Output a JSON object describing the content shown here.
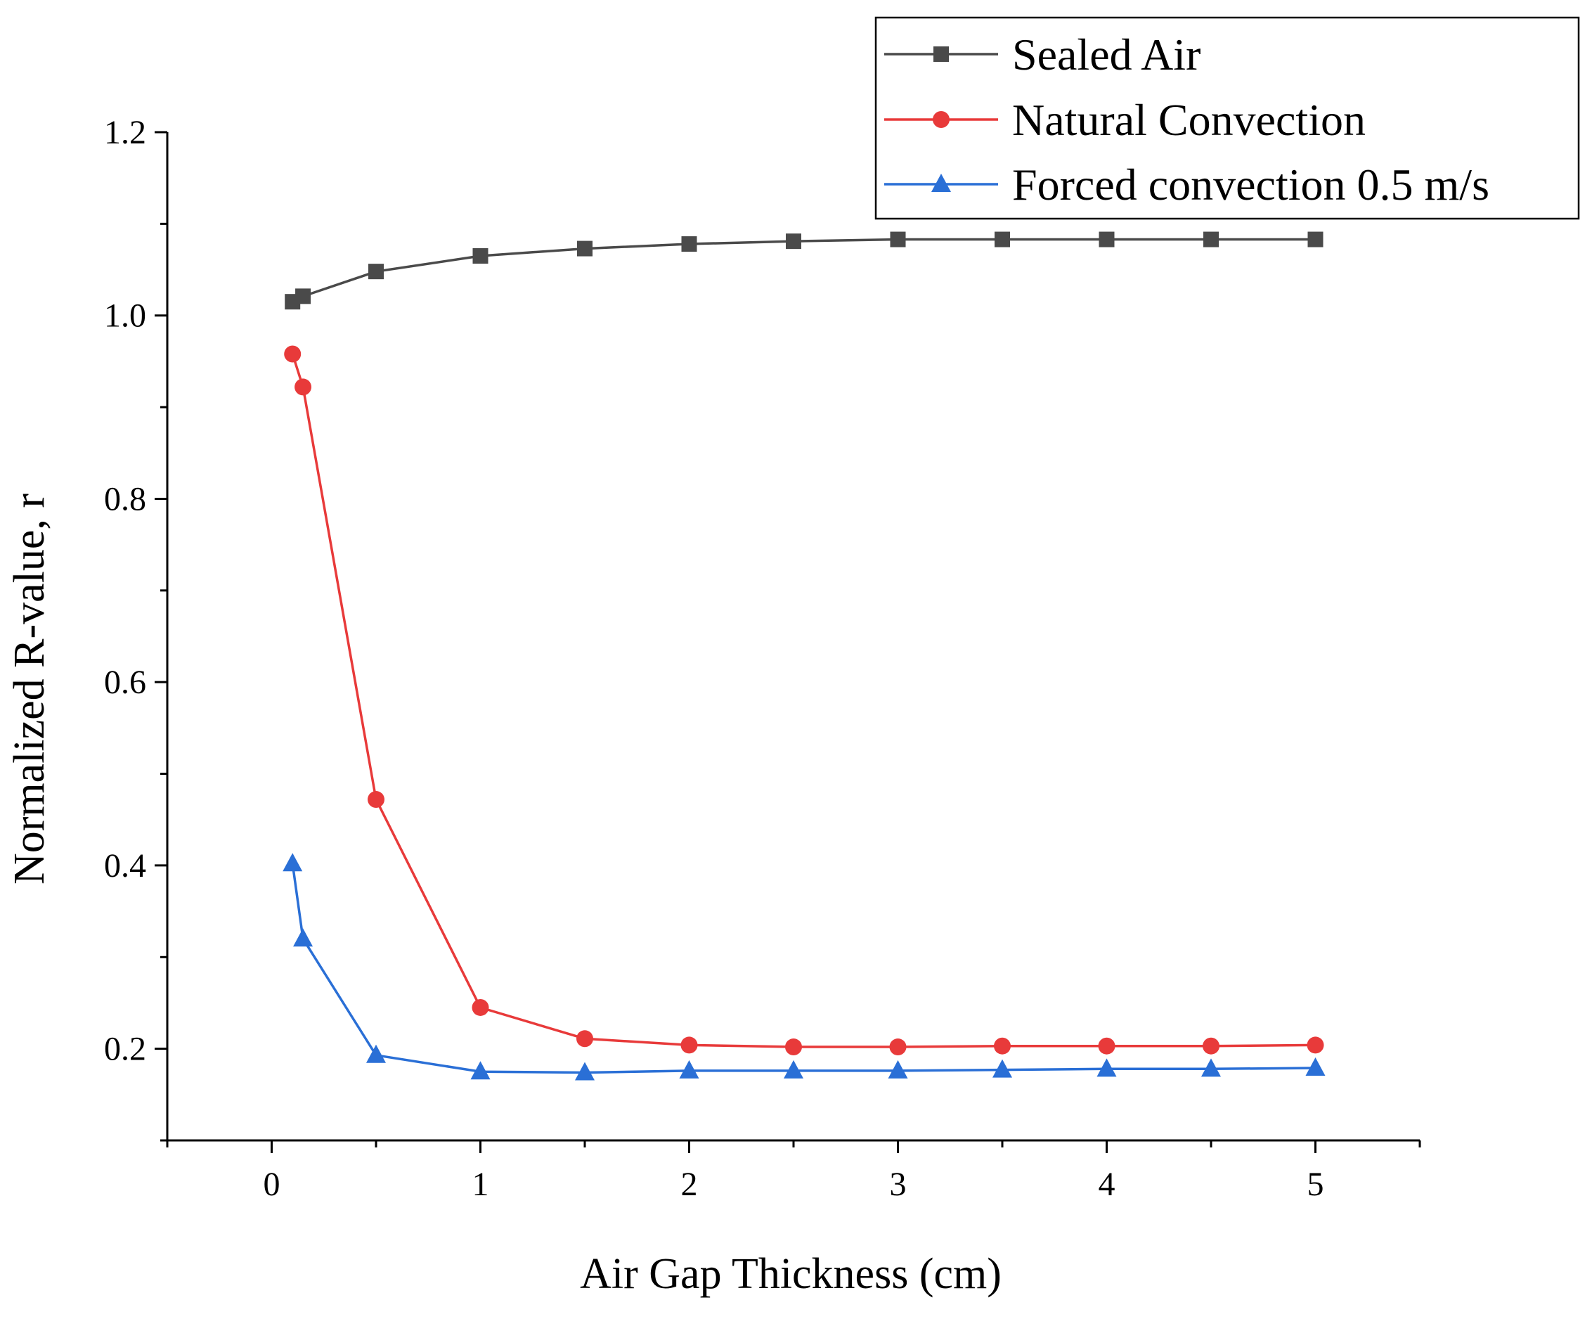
{
  "chart_data": {
    "type": "line",
    "title": "",
    "xlabel": "Air Gap Thickness (cm)",
    "ylabel": "Normalized R-value, r",
    "xlim": [
      -0.5,
      5.5
    ],
    "ylim": [
      0.1,
      1.2
    ],
    "xticks": [
      0,
      1,
      2,
      3,
      4,
      5
    ],
    "xtick_labels": [
      "0",
      "1",
      "2",
      "3",
      "4",
      "5"
    ],
    "yticks": [
      0.2,
      0.4,
      0.6,
      0.8,
      1.0,
      1.2
    ],
    "ytick_labels": [
      "0.2",
      "0.4",
      "0.6",
      "0.8",
      "1.0",
      "1.2"
    ],
    "grid": false,
    "legend_position": "top-right",
    "x": [
      0.1,
      0.15,
      0.5,
      1,
      1.5,
      2,
      2.5,
      3,
      3.5,
      4,
      4.5,
      5
    ],
    "series": [
      {
        "name": "Sealed Air",
        "color": "#4a4a4a",
        "marker": "square",
        "values": [
          1.015,
          1.021,
          1.048,
          1.065,
          1.073,
          1.078,
          1.081,
          1.083,
          1.083,
          1.083,
          1.083,
          1.083
        ]
      },
      {
        "name": "Natural Convection",
        "color": "#e83a3a",
        "marker": "circle",
        "values": [
          0.958,
          0.922,
          0.472,
          0.245,
          0.211,
          0.204,
          0.202,
          0.202,
          0.203,
          0.203,
          0.203,
          0.204
        ]
      },
      {
        "name": "Forced convection 0.5 m/s",
        "color": "#2a6fd6",
        "marker": "triangle",
        "values": [
          0.402,
          0.32,
          0.193,
          0.175,
          0.174,
          0.176,
          0.176,
          0.176,
          0.177,
          0.178,
          0.178,
          0.179
        ]
      }
    ]
  }
}
